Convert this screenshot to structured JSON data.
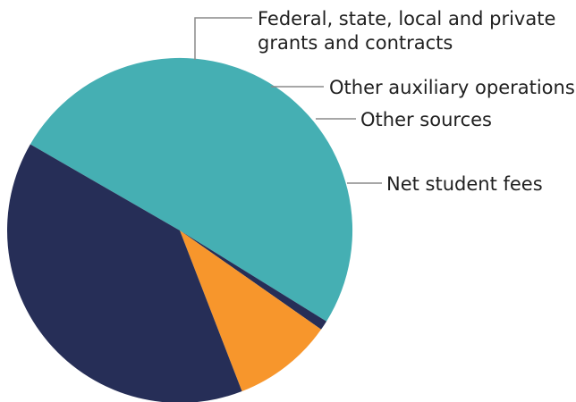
{
  "chart_data": {
    "type": "pie",
    "title": "",
    "slices": [
      {
        "label_lines": [
          "Federal, state, local and private",
          "grants and contracts"
        ],
        "value": 50.5,
        "color": "#45AFB3"
      },
      {
        "label_lines": [
          "Other auxiliary operations"
        ],
        "value": 0.9,
        "color": "#262E57"
      },
      {
        "label_lines": [
          "Other sources"
        ],
        "value": 9.4,
        "color": "#F7962C"
      },
      {
        "label_lines": [
          "Net student fees"
        ],
        "value": 39.2,
        "color": "#262E57"
      }
    ],
    "legend": "leader-line labels"
  }
}
